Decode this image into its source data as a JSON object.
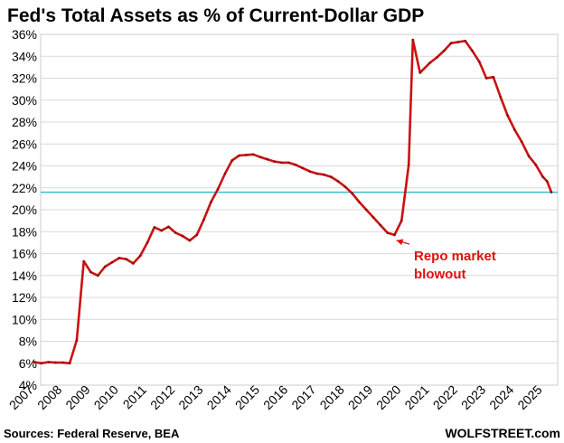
{
  "chart_data": {
    "type": "line",
    "title": "Fed's Total Assets as % of Current-Dollar GDP",
    "xlabel": "",
    "ylabel": "",
    "xlim": [
      2007,
      2025.3
    ],
    "ylim": [
      4,
      36
    ],
    "grid": true,
    "y_ticks": [
      {
        "value": 4,
        "label": "4%"
      },
      {
        "value": 6,
        "label": "6%"
      },
      {
        "value": 8,
        "label": "8%"
      },
      {
        "value": 10,
        "label": "10%"
      },
      {
        "value": 12,
        "label": "12%"
      },
      {
        "value": 14,
        "label": "14%"
      },
      {
        "value": 16,
        "label": "16%"
      },
      {
        "value": 18,
        "label": "18%"
      },
      {
        "value": 20,
        "label": "20%"
      },
      {
        "value": 22,
        "label": "22%"
      },
      {
        "value": 24,
        "label": "24%"
      },
      {
        "value": 26,
        "label": "26%"
      },
      {
        "value": 28,
        "label": "28%"
      },
      {
        "value": 30,
        "label": "30%"
      },
      {
        "value": 32,
        "label": "32%"
      },
      {
        "value": 34,
        "label": "34%"
      },
      {
        "value": 36,
        "label": "36%"
      }
    ],
    "x_ticks": [
      {
        "value": 2007,
        "label": "2007"
      },
      {
        "value": 2008,
        "label": "2008"
      },
      {
        "value": 2009,
        "label": "2009"
      },
      {
        "value": 2010,
        "label": "2010"
      },
      {
        "value": 2011,
        "label": "2011"
      },
      {
        "value": 2012,
        "label": "2012"
      },
      {
        "value": 2013,
        "label": "2013"
      },
      {
        "value": 2014,
        "label": "2014"
      },
      {
        "value": 2015,
        "label": "2015"
      },
      {
        "value": 2016,
        "label": "2016"
      },
      {
        "value": 2017,
        "label": "2017"
      },
      {
        "value": 2018,
        "label": "2018"
      },
      {
        "value": 2019,
        "label": "2019"
      },
      {
        "value": 2020,
        "label": "2020"
      },
      {
        "value": 2021,
        "label": "2021"
      },
      {
        "value": 2022,
        "label": "2022"
      },
      {
        "value": 2023,
        "label": "2023"
      },
      {
        "value": 2024,
        "label": "2024"
      },
      {
        "value": 2025,
        "label": "2025"
      }
    ],
    "series": [
      {
        "color": "#cc1111",
        "points": [
          [
            2007.0,
            6.1
          ],
          [
            2007.25,
            6.0
          ],
          [
            2007.5,
            6.1
          ],
          [
            2007.75,
            6.05
          ],
          [
            2008.0,
            6.05
          ],
          [
            2008.25,
            6.0
          ],
          [
            2008.5,
            8.1
          ],
          [
            2008.75,
            15.3
          ],
          [
            2009.0,
            14.3
          ],
          [
            2009.25,
            14.0
          ],
          [
            2009.5,
            14.8
          ],
          [
            2009.75,
            15.2
          ],
          [
            2010.0,
            15.6
          ],
          [
            2010.25,
            15.5
          ],
          [
            2010.5,
            15.1
          ],
          [
            2010.75,
            15.8
          ],
          [
            2011.0,
            17.0
          ],
          [
            2011.25,
            18.4
          ],
          [
            2011.5,
            18.1
          ],
          [
            2011.75,
            18.45
          ],
          [
            2012.0,
            17.9
          ],
          [
            2012.25,
            17.6
          ],
          [
            2012.5,
            17.2
          ],
          [
            2012.75,
            17.7
          ],
          [
            2013.0,
            19.1
          ],
          [
            2013.25,
            20.7
          ],
          [
            2013.5,
            21.9
          ],
          [
            2013.75,
            23.3
          ],
          [
            2014.0,
            24.5
          ],
          [
            2014.25,
            24.95
          ],
          [
            2014.5,
            25.0
          ],
          [
            2014.75,
            25.05
          ],
          [
            2015.0,
            24.8
          ],
          [
            2015.25,
            24.6
          ],
          [
            2015.5,
            24.4
          ],
          [
            2015.75,
            24.3
          ],
          [
            2016.0,
            24.3
          ],
          [
            2016.25,
            24.1
          ],
          [
            2016.5,
            23.8
          ],
          [
            2016.75,
            23.5
          ],
          [
            2017.0,
            23.3
          ],
          [
            2017.25,
            23.2
          ],
          [
            2017.5,
            23.0
          ],
          [
            2017.75,
            22.6
          ],
          [
            2018.0,
            22.1
          ],
          [
            2018.25,
            21.5
          ],
          [
            2018.5,
            20.7
          ],
          [
            2018.75,
            20.0
          ],
          [
            2019.0,
            19.3
          ],
          [
            2019.25,
            18.6
          ],
          [
            2019.5,
            17.9
          ],
          [
            2019.75,
            17.7
          ],
          [
            2020.0,
            19.0
          ],
          [
            2020.25,
            24.1
          ],
          [
            2020.4,
            35.5
          ],
          [
            2020.65,
            32.5
          ],
          [
            2021.0,
            33.4
          ],
          [
            2021.25,
            33.9
          ],
          [
            2021.5,
            34.5
          ],
          [
            2021.75,
            35.2
          ],
          [
            2022.0,
            35.3
          ],
          [
            2022.25,
            35.4
          ],
          [
            2022.5,
            34.5
          ],
          [
            2022.75,
            33.5
          ],
          [
            2023.0,
            32.0
          ],
          [
            2023.25,
            32.1
          ],
          [
            2023.5,
            30.3
          ],
          [
            2023.75,
            28.6
          ],
          [
            2024.0,
            27.3
          ],
          [
            2024.25,
            26.2
          ],
          [
            2024.5,
            24.9
          ],
          [
            2024.75,
            24.1
          ],
          [
            2025.0,
            23.0
          ],
          [
            2025.15,
            22.6
          ],
          [
            2025.3,
            21.6
          ]
        ]
      }
    ],
    "reference_line": {
      "value": 21.6,
      "color": "#3bbcd0"
    },
    "annotation": {
      "text_line1": "Repo market",
      "text_line2": "blowout",
      "color": "#dd1111",
      "points_to_x": 2019.75,
      "points_to_y": 17.7
    }
  },
  "footer": {
    "sources": "Sources: Federal Reserve, BEA",
    "brand": "WOLFSTREET.com"
  }
}
